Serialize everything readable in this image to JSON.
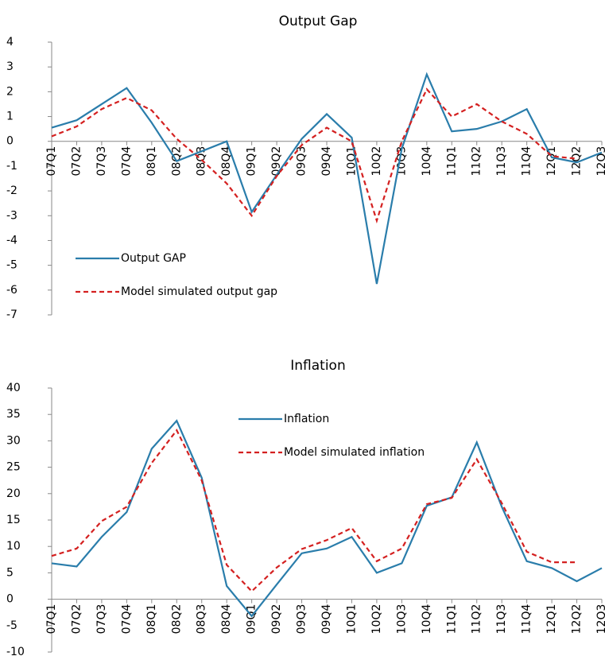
{
  "chart_data": [
    {
      "type": "line",
      "title": "Output Gap",
      "categories": [
        "07Q1",
        "07Q2",
        "07Q3",
        "07Q4",
        "08Q1",
        "08Q2",
        "08Q3",
        "08Q4",
        "09Q1",
        "09Q2",
        "09Q3",
        "09Q4",
        "10Q1",
        "10Q2",
        "10Q3",
        "10Q4",
        "11Q1",
        "11Q2",
        "11Q3",
        "11Q4",
        "12Q1",
        "12Q2",
        "12Q3"
      ],
      "series": [
        {
          "name": "Output GAP",
          "color": "#2a7dab",
          "dash": false,
          "values": [
            0.55,
            0.85,
            1.5,
            2.15,
            0.75,
            -0.8,
            -0.4,
            0.0,
            -2.85,
            -1.35,
            0.1,
            1.1,
            0.15,
            -5.75,
            -0.3,
            2.7,
            0.4,
            0.5,
            0.8,
            1.3,
            -0.65,
            -0.85,
            -0.45
          ]
        },
        {
          "name": "Model simulated output gap",
          "color": "#d42020",
          "dash": true,
          "values": [
            0.2,
            0.6,
            1.3,
            1.75,
            1.25,
            0.1,
            -0.75,
            -1.7,
            -3.0,
            -1.4,
            -0.15,
            0.55,
            0.0,
            -3.2,
            0.0,
            2.1,
            1.0,
            1.5,
            0.8,
            0.3,
            -0.6,
            -0.7,
            null
          ]
        }
      ],
      "ylim": [
        -7,
        4
      ],
      "yticks": [
        4,
        3,
        2,
        1,
        0,
        -1,
        -2,
        -3,
        -4,
        -5,
        -6,
        -7
      ],
      "legend": "lower left"
    },
    {
      "type": "line",
      "title": "Inflation",
      "categories": [
        "07Q1",
        "07Q2",
        "07Q3",
        "07Q4",
        "08Q1",
        "08Q2",
        "08Q3",
        "08Q4",
        "09Q1",
        "09Q2",
        "09Q3",
        "09Q4",
        "10Q1",
        "10Q2",
        "10Q3",
        "10Q4",
        "11Q1",
        "11Q2",
        "11Q3",
        "11Q4",
        "12Q1",
        "12Q2",
        "12Q3"
      ],
      "series": [
        {
          "name": "Inflation",
          "color": "#2a7dab",
          "dash": false,
          "values": [
            6.8,
            6.2,
            11.8,
            16.5,
            28.5,
            33.8,
            23,
            2.5,
            -3.2,
            2.8,
            8.7,
            9.6,
            11.8,
            5.0,
            6.8,
            17.7,
            19.3,
            29.7,
            17.5,
            7.2,
            5.9,
            3.4,
            5.9
          ]
        },
        {
          "name": "Model simulated inflation",
          "color": "#d42020",
          "dash": true,
          "values": [
            8.2,
            9.6,
            14.8,
            17.5,
            25.8,
            32.0,
            22.5,
            6.5,
            1.5,
            6.0,
            9.5,
            11.2,
            13.5,
            7.2,
            9.6,
            18.0,
            19.2,
            26.5,
            18.2,
            9.0,
            7.0,
            7.0,
            null
          ]
        }
      ],
      "ylim": [
        -10,
        40
      ],
      "yticks": [
        40,
        35,
        30,
        25,
        20,
        15,
        10,
        5,
        0,
        -5,
        -10
      ],
      "legend": "upper center"
    }
  ]
}
